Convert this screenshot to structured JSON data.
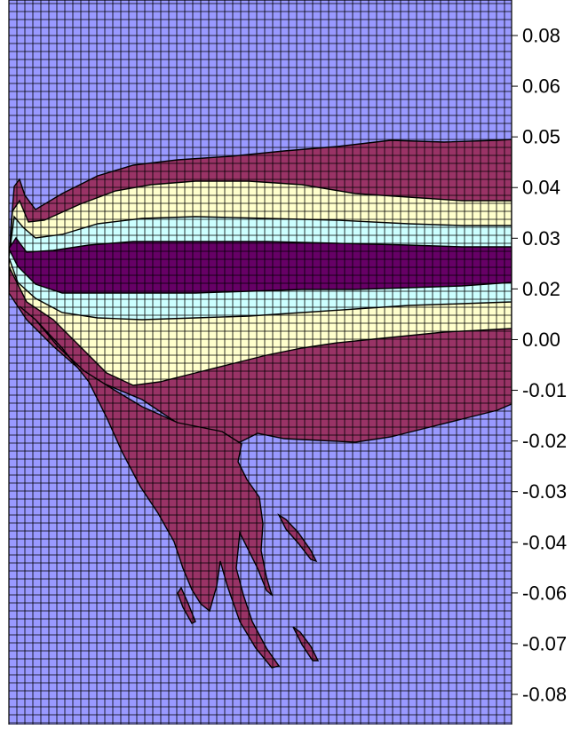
{
  "chart_data": {
    "type": "heatmap",
    "subtype": "filled-contour",
    "title": "",
    "xlabel": "",
    "ylabel": "",
    "grid": true,
    "y_axis_side": "right",
    "y_ticks": [
      "0.08",
      "0.06",
      "0.05",
      "0.04",
      "0.03",
      "0.02",
      "0.00",
      "-0.01",
      "-0.02",
      "-0.03",
      "-0.04",
      "-0.06",
      "-0.07",
      "-0.08"
    ],
    "ylim": [
      -0.085,
      0.085
    ],
    "colors": {
      "background_level": "#9999ff",
      "level_1": "#993366",
      "level_2": "#ffffcc",
      "level_3": "#ccffff",
      "level_4": "#660066",
      "grid_line": "#000000",
      "contour_line": "#000000"
    },
    "regions": [
      {
        "level": "level_1",
        "shape": "upper wedge from the left edge widening to the right, top edge near 0.049 at right",
        "extent": "top ≈ 0.049 on the right side, down to ≈ -0.018 at right"
      },
      {
        "level": "level_1",
        "shape": "lower plume extending down-right with streaks",
        "extent": "down to ≈ -0.078"
      },
      {
        "level": "level_2",
        "shape": "band between ≈ 0.038 and ≈ 0.002, dipping to ≈ -0.009 near the left-middle"
      },
      {
        "level": "level_3",
        "shape": "thin bands at ≈ 0.030 and ≈ 0.015"
      },
      {
        "level": "level_4",
        "shape": "core band centered ≈ 0.023 from ≈ 0.028 to ≈ 0.018"
      }
    ]
  }
}
